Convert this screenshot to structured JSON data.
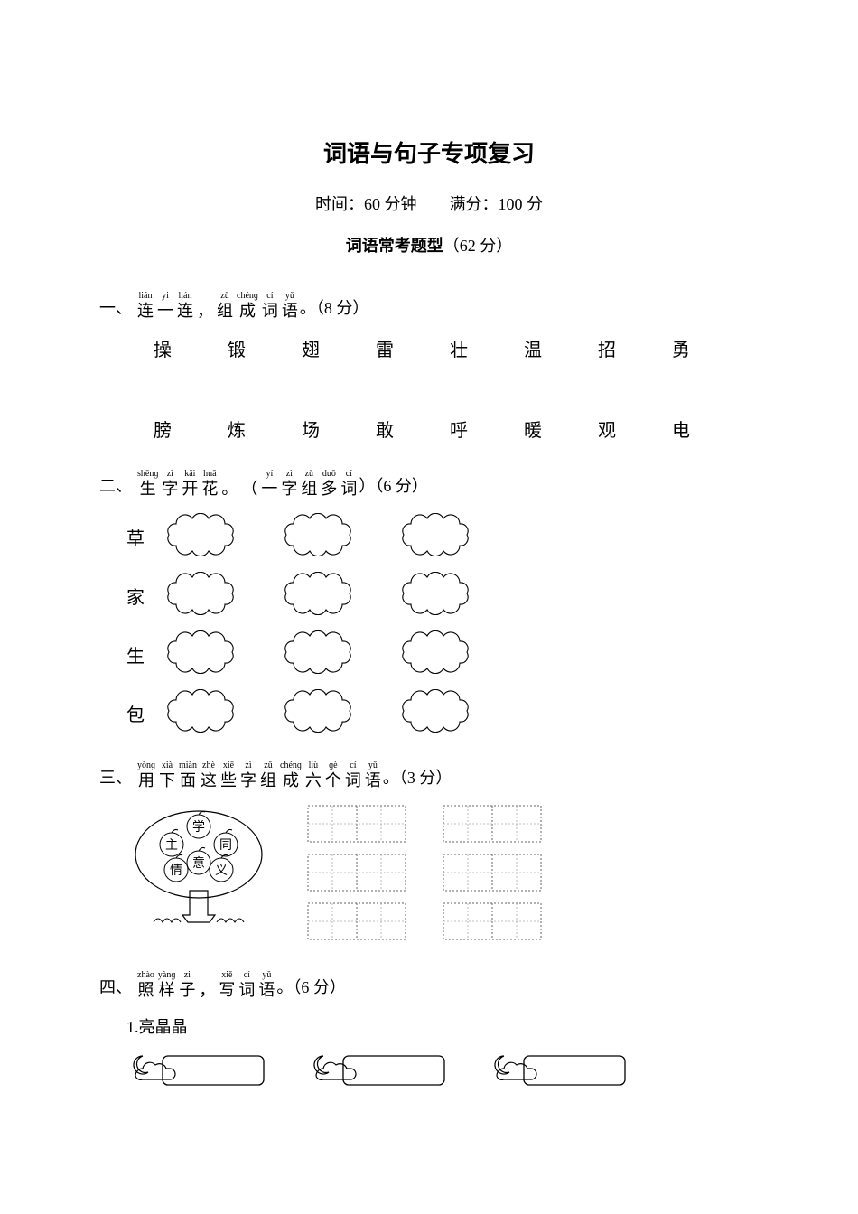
{
  "title": "词语与句子专项复习",
  "meta": {
    "time_label": "时间：",
    "time_value": "60 分钟",
    "gap": "　　",
    "score_label": "满分：",
    "score_value": "100 分"
  },
  "subtitle_bold": "词语常考题型",
  "subtitle_points": "（62 分）",
  "q1": {
    "num": "一、",
    "ruby": [
      {
        "p": "lián",
        "h": "连"
      },
      {
        "p": "yi",
        "h": "一"
      },
      {
        "p": "lián",
        "h": "连"
      },
      {
        "p": "",
        "h": "，"
      },
      {
        "p": "zǔ",
        "h": "组"
      },
      {
        "p": "chénɡ",
        "h": "成"
      },
      {
        "p": "cí",
        "h": "词"
      },
      {
        "p": "yǔ",
        "h": "语"
      }
    ],
    "tail": "。（8 分）",
    "row1": [
      "操",
      "锻",
      "翅",
      "雷",
      "壮",
      "温",
      "招",
      "勇"
    ],
    "row2": [
      "膀",
      "炼",
      "场",
      "敢",
      "呼",
      "暖",
      "观",
      "电"
    ]
  },
  "q2": {
    "num": "二、",
    "ruby": [
      {
        "p": "shēnɡ",
        "h": "生"
      },
      {
        "p": "zì",
        "h": "字"
      },
      {
        "p": "kāi",
        "h": "开"
      },
      {
        "p": "huā",
        "h": "花"
      },
      {
        "p": "",
        "h": "。"
      },
      {
        "p": "",
        "h": "（"
      },
      {
        "p": "yí",
        "h": "一"
      },
      {
        "p": "zì",
        "h": "字"
      },
      {
        "p": "zǔ",
        "h": "组"
      },
      {
        "p": "duō",
        "h": "多"
      },
      {
        "p": "cí",
        "h": "词"
      }
    ],
    "tail": "）（6 分）",
    "labels": [
      "草",
      "家",
      "生",
      "包"
    ]
  },
  "q3": {
    "num": "三、",
    "ruby": [
      {
        "p": "yònɡ",
        "h": "用"
      },
      {
        "p": "xià",
        "h": "下"
      },
      {
        "p": "miàn",
        "h": "面"
      },
      {
        "p": "zhè",
        "h": "这"
      },
      {
        "p": "xiē",
        "h": "些"
      },
      {
        "p": "zì",
        "h": "字"
      },
      {
        "p": "zǔ",
        "h": "组"
      },
      {
        "p": "chénɡ",
        "h": "成"
      },
      {
        "p": "liù",
        "h": "六"
      },
      {
        "p": "ɡè",
        "h": "个"
      },
      {
        "p": "cí",
        "h": "词"
      },
      {
        "p": "yǔ",
        "h": "语"
      }
    ],
    "tail": "。（3 分）",
    "tree_chars": [
      "学",
      "主",
      "同",
      "情",
      "意",
      "义"
    ]
  },
  "q4": {
    "num": "四、",
    "ruby": [
      {
        "p": "zhào",
        "h": "照"
      },
      {
        "p": "yànɡ",
        "h": "样"
      },
      {
        "p": "zi",
        "h": "子"
      },
      {
        "p": "",
        "h": "，"
      },
      {
        "p": "xiě",
        "h": "写"
      },
      {
        "p": "cí",
        "h": "词"
      },
      {
        "p": "yǔ",
        "h": "语"
      }
    ],
    "tail": "。（6 分）",
    "sub1": "1.亮晶晶"
  }
}
